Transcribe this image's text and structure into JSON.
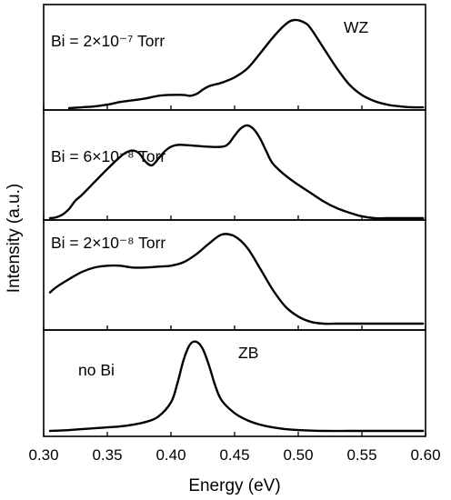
{
  "chart_data": {
    "type": "line",
    "xlabel": "Energy (eV)",
    "ylabel": "Intensity (a.u.)",
    "xlim": [
      0.3,
      0.6
    ],
    "xticks": [
      "0.30",
      "0.35",
      "0.40",
      "0.45",
      "0.50",
      "0.55",
      "0.60"
    ],
    "panels": [
      {
        "label": "Bi = 2×10⁻⁷ Torr",
        "annotation": "WZ",
        "x": [
          0.32,
          0.33,
          0.34,
          0.35,
          0.36,
          0.37,
          0.38,
          0.39,
          0.4,
          0.41,
          0.415,
          0.42,
          0.425,
          0.43,
          0.435,
          0.44,
          0.45,
          0.46,
          0.47,
          0.48,
          0.49,
          0.497,
          0.505,
          0.51,
          0.52,
          0.53,
          0.54,
          0.55,
          0.56,
          0.57,
          0.58,
          0.59,
          0.598
        ],
        "y": [
          0.0,
          0.01,
          0.02,
          0.04,
          0.07,
          0.09,
          0.11,
          0.14,
          0.15,
          0.15,
          0.14,
          0.16,
          0.21,
          0.25,
          0.27,
          0.29,
          0.35,
          0.45,
          0.62,
          0.8,
          0.95,
          1.0,
          0.97,
          0.9,
          0.68,
          0.46,
          0.27,
          0.15,
          0.08,
          0.04,
          0.02,
          0.01,
          0.01
        ]
      },
      {
        "label": "Bi = 6×10⁻⁸ Torr",
        "annotation": "",
        "x": [
          0.305,
          0.31,
          0.315,
          0.32,
          0.325,
          0.33,
          0.34,
          0.35,
          0.36,
          0.365,
          0.37,
          0.375,
          0.38,
          0.385,
          0.39,
          0.395,
          0.4,
          0.405,
          0.41,
          0.42,
          0.43,
          0.44,
          0.445,
          0.45,
          0.455,
          0.46,
          0.465,
          0.47,
          0.475,
          0.48,
          0.49,
          0.5,
          0.51,
          0.52,
          0.53,
          0.54,
          0.55,
          0.56,
          0.57,
          0.58,
          0.59,
          0.598
        ],
        "y": [
          0.0,
          0.01,
          0.04,
          0.1,
          0.19,
          0.25,
          0.39,
          0.53,
          0.66,
          0.71,
          0.73,
          0.7,
          0.61,
          0.57,
          0.64,
          0.72,
          0.77,
          0.79,
          0.79,
          0.78,
          0.77,
          0.77,
          0.8,
          0.89,
          0.97,
          1.0,
          0.96,
          0.86,
          0.72,
          0.59,
          0.46,
          0.36,
          0.27,
          0.18,
          0.11,
          0.06,
          0.02,
          0.0,
          0.0,
          0.0,
          0.0,
          0.0
        ]
      },
      {
        "label": "Bi = 2×10⁻⁸ Torr",
        "annotation": "",
        "x": [
          0.305,
          0.31,
          0.32,
          0.33,
          0.34,
          0.35,
          0.36,
          0.37,
          0.38,
          0.39,
          0.4,
          0.41,
          0.42,
          0.43,
          0.44,
          0.45,
          0.46,
          0.47,
          0.48,
          0.49,
          0.5,
          0.51,
          0.52,
          0.53,
          0.54,
          0.55,
          0.56,
          0.57,
          0.58,
          0.59,
          0.598
        ],
        "y": [
          0.35,
          0.41,
          0.5,
          0.58,
          0.63,
          0.65,
          0.65,
          0.63,
          0.63,
          0.64,
          0.65,
          0.69,
          0.78,
          0.9,
          1.0,
          0.98,
          0.85,
          0.62,
          0.38,
          0.19,
          0.08,
          0.02,
          0.0,
          0.0,
          0.0,
          0.0,
          0.0,
          0.0,
          0.0,
          0.0,
          0.0
        ]
      },
      {
        "label": "no Bi",
        "annotation": "ZB",
        "x": [
          0.305,
          0.32,
          0.34,
          0.35,
          0.36,
          0.37,
          0.38,
          0.39,
          0.4,
          0.405,
          0.41,
          0.415,
          0.42,
          0.425,
          0.43,
          0.435,
          0.44,
          0.45,
          0.46,
          0.47,
          0.48,
          0.49,
          0.5,
          0.52,
          0.54,
          0.56,
          0.58,
          0.598
        ],
        "y": [
          0.0,
          0.01,
          0.03,
          0.04,
          0.05,
          0.07,
          0.1,
          0.16,
          0.32,
          0.53,
          0.8,
          0.97,
          1.0,
          0.92,
          0.73,
          0.5,
          0.34,
          0.2,
          0.12,
          0.07,
          0.04,
          0.02,
          0.01,
          0.0,
          0.0,
          0.0,
          0.0,
          0.0
        ]
      }
    ]
  }
}
